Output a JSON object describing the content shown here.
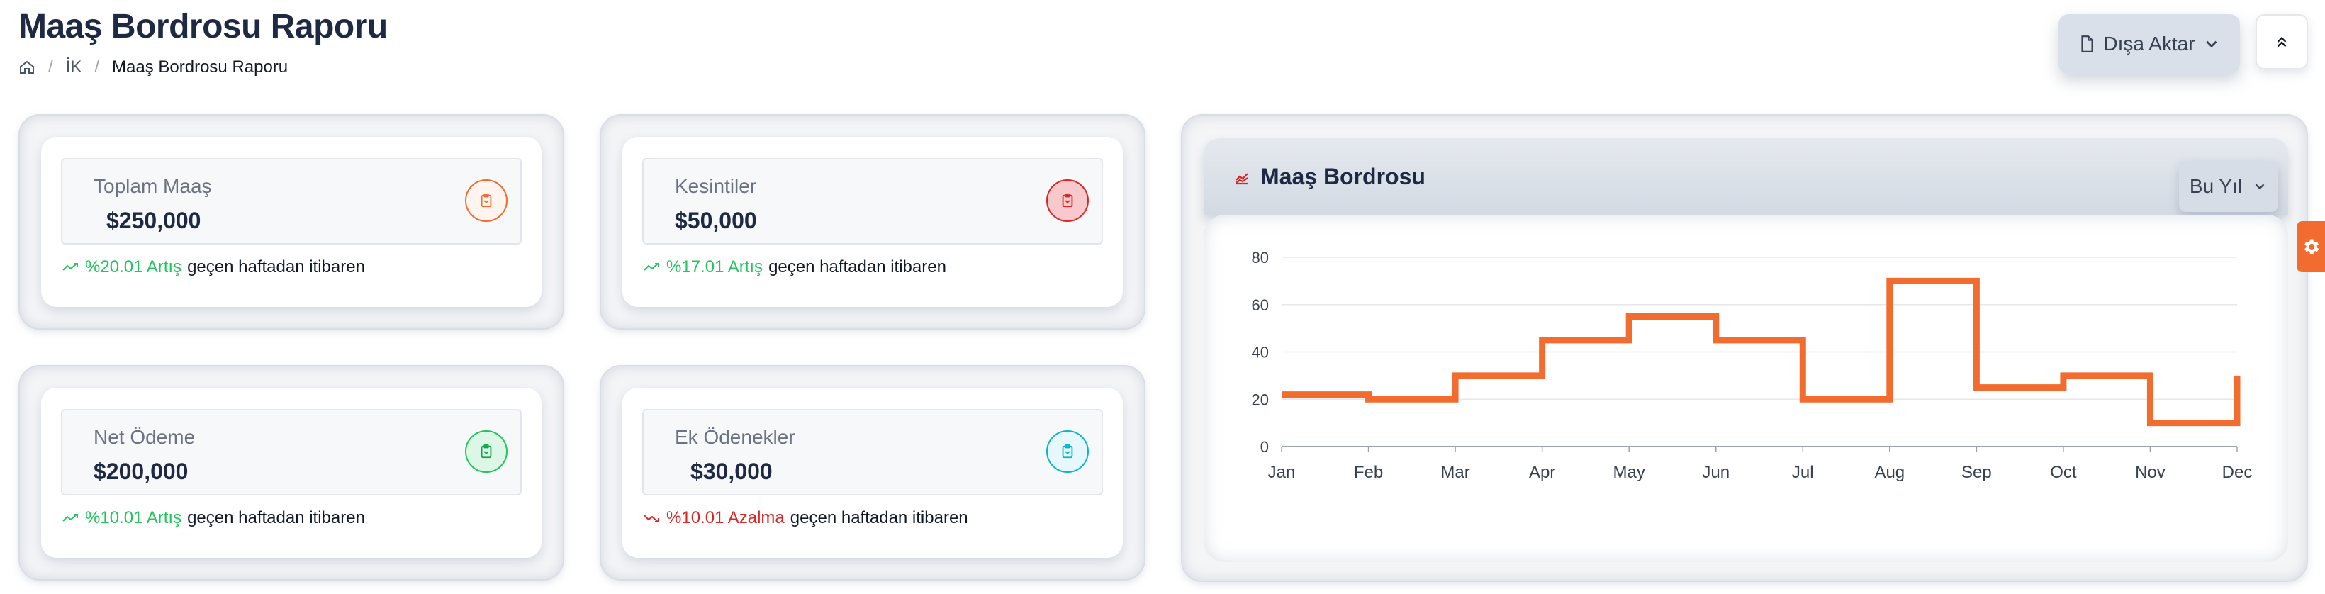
{
  "page": {
    "title": "Maaş Bordrosu Raporu"
  },
  "breadcrumb": {
    "level1": "İK",
    "current": "Maaş Bordrosu Raporu",
    "separator": "/"
  },
  "toolbar": {
    "export_label": "Dışa Aktar"
  },
  "cards": [
    {
      "label": "Toplam Maaş",
      "value": "$250,000",
      "change": "%20.01 Artış",
      "trend": "up",
      "suffix": "geçen haftadan itibaren",
      "accent": "#f26b2f",
      "icon": "clipboard-icon"
    },
    {
      "label": "Kesintiler",
      "value": "$50,000",
      "change": "%17.01 Artış",
      "trend": "up",
      "suffix": "geçen haftadan itibaren",
      "accent": "#dc2626",
      "icon": "clipboard-icon"
    },
    {
      "label": "Net Ödeme",
      "value": "$200,000",
      "change": "%10.01 Artış",
      "trend": "up",
      "suffix": "geçen haftadan itibaren",
      "accent": "#22c55e",
      "icon": "clipboard-icon"
    },
    {
      "label": "Ek Ödenekler",
      "value": "$30,000",
      "change": "%10.01 Azalma",
      "trend": "down",
      "suffix": "geçen haftadan itibaren",
      "accent": "#06b6d4",
      "icon": "clipboard-icon"
    }
  ],
  "colors": {
    "up": "#22c55e",
    "down": "#dc2626",
    "line": "#f26b2f"
  },
  "chart_panel": {
    "title": "Maaş Bordrosu",
    "period": "Bu Yıl"
  },
  "chart_data": {
    "type": "line",
    "step": true,
    "categories": [
      "Jan",
      "Feb",
      "Mar",
      "Apr",
      "May",
      "Jun",
      "Jul",
      "Aug",
      "Sep",
      "Oct",
      "Nov",
      "Dec"
    ],
    "series": [
      {
        "values": [
          22,
          20,
          30,
          45,
          55,
          45,
          20,
          70,
          25,
          30,
          10,
          30
        ]
      }
    ],
    "yticks": [
      0,
      20,
      40,
      60,
      80
    ],
    "ylim": [
      0,
      80
    ],
    "grid": true,
    "title": "",
    "xlabel": "",
    "ylabel": ""
  }
}
